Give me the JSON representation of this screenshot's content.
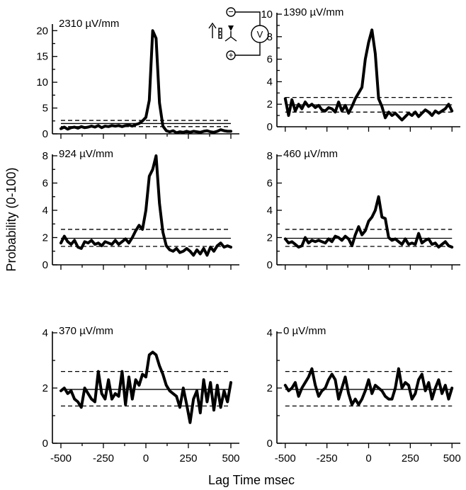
{
  "chart_data": {
    "type": "line",
    "xlabel": "Lag Time msec",
    "ylabel": "Probability (0-100)",
    "x_ticks": [
      -500,
      -250,
      0,
      250,
      500
    ],
    "x_range": [
      -550,
      550
    ],
    "inset_symbols": {
      "voltmeter": "V",
      "minus": "−",
      "plus": "+"
    },
    "panels": [
      {
        "label": "2310 µV/mm",
        "ylim": [
          0,
          21
        ],
        "yticks": [
          0,
          5,
          10,
          15,
          20
        ],
        "mean": 2.0,
        "upper": 2.6,
        "lower": 1.4,
        "x": [
          -500,
          -480,
          -460,
          -440,
          -420,
          -400,
          -380,
          -360,
          -340,
          -320,
          -300,
          -280,
          -260,
          -240,
          -220,
          -200,
          -180,
          -160,
          -140,
          -120,
          -100,
          -80,
          -60,
          -40,
          -20,
          0,
          20,
          40,
          60,
          80,
          100,
          120,
          140,
          160,
          180,
          200,
          220,
          240,
          260,
          280,
          300,
          320,
          340,
          360,
          380,
          400,
          420,
          440,
          460,
          480,
          500
        ],
        "y": [
          1.0,
          1.3,
          0.9,
          1.2,
          1.3,
          1.1,
          1.4,
          1.2,
          1.3,
          1.5,
          1.3,
          1.6,
          1.2,
          1.5,
          1.4,
          1.6,
          1.5,
          1.6,
          1.4,
          1.6,
          1.7,
          1.5,
          1.8,
          2.0,
          2.5,
          3.2,
          6.5,
          20.0,
          18.5,
          6.0,
          1.5,
          0.6,
          0.4,
          0.6,
          0.2,
          0.4,
          0.3,
          0.5,
          0.3,
          0.5,
          0.4,
          0.3,
          0.5,
          0.6,
          0.4,
          0.3,
          0.5,
          0.8,
          0.6,
          0.5,
          0.5
        ]
      },
      {
        "label": "1390 µV/mm",
        "ylim": [
          0,
          10
        ],
        "yticks": [
          0,
          2,
          4,
          6,
          8,
          10
        ],
        "mean": 1.95,
        "upper": 2.6,
        "lower": 1.3,
        "x": [
          -500,
          -480,
          -460,
          -440,
          -420,
          -400,
          -380,
          -360,
          -340,
          -320,
          -300,
          -280,
          -260,
          -240,
          -220,
          -200,
          -180,
          -160,
          -140,
          -120,
          -100,
          -80,
          -60,
          -40,
          -20,
          0,
          20,
          40,
          60,
          80,
          100,
          120,
          140,
          160,
          180,
          200,
          220,
          240,
          260,
          280,
          300,
          320,
          340,
          360,
          380,
          400,
          420,
          440,
          460,
          480,
          500
        ],
        "y": [
          2.5,
          1.0,
          2.4,
          1.4,
          2.0,
          1.6,
          2.2,
          1.8,
          2.0,
          1.7,
          1.9,
          1.5,
          1.4,
          1.7,
          1.6,
          1.3,
          2.2,
          1.4,
          1.9,
          1.2,
          1.8,
          2.5,
          3.0,
          3.5,
          6.0,
          7.5,
          8.6,
          6.5,
          2.5,
          1.8,
          0.8,
          1.3,
          1.0,
          1.2,
          0.9,
          0.6,
          0.9,
          1.2,
          1.0,
          1.3,
          0.9,
          1.2,
          1.5,
          1.3,
          1.0,
          1.4,
          1.2,
          1.4,
          1.6,
          2.0,
          1.4
        ]
      },
      {
        "label": "924 µV/mm",
        "ylim": [
          0,
          8
        ],
        "yticks": [
          0,
          2,
          4,
          6,
          8
        ],
        "mean": 1.95,
        "upper": 2.6,
        "lower": 1.35,
        "x": [
          -500,
          -480,
          -460,
          -440,
          -420,
          -400,
          -380,
          -360,
          -340,
          -320,
          -300,
          -280,
          -260,
          -240,
          -220,
          -200,
          -180,
          -160,
          -140,
          -120,
          -100,
          -80,
          -60,
          -40,
          -20,
          0,
          20,
          40,
          60,
          80,
          100,
          120,
          140,
          160,
          180,
          200,
          220,
          240,
          260,
          280,
          300,
          320,
          340,
          360,
          380,
          400,
          420,
          440,
          460,
          480,
          500
        ],
        "y": [
          1.6,
          2.1,
          1.7,
          1.5,
          1.8,
          1.3,
          1.2,
          1.7,
          1.6,
          1.8,
          1.5,
          1.6,
          1.4,
          1.7,
          1.6,
          1.5,
          1.8,
          1.5,
          1.7,
          1.9,
          1.6,
          2.0,
          2.5,
          2.9,
          2.6,
          4.0,
          6.5,
          7.0,
          8.0,
          4.5,
          2.4,
          1.4,
          1.1,
          1.0,
          1.2,
          0.9,
          1.0,
          1.2,
          1.0,
          0.7,
          1.1,
          0.8,
          1.2,
          0.7,
          1.3,
          1.0,
          1.4,
          1.6,
          1.3,
          1.4,
          1.3
        ]
      },
      {
        "label": "460 µV/mm",
        "ylim": [
          0,
          8
        ],
        "yticks": [
          0,
          2,
          4,
          6,
          8
        ],
        "mean": 1.95,
        "upper": 2.6,
        "lower": 1.35,
        "x": [
          -500,
          -480,
          -460,
          -440,
          -420,
          -400,
          -380,
          -360,
          -340,
          -320,
          -300,
          -280,
          -260,
          -240,
          -220,
          -200,
          -180,
          -160,
          -140,
          -120,
          -100,
          -80,
          -60,
          -40,
          -20,
          0,
          20,
          40,
          60,
          80,
          100,
          120,
          140,
          160,
          180,
          200,
          220,
          240,
          260,
          280,
          300,
          320,
          340,
          360,
          380,
          400,
          420,
          440,
          460,
          480,
          500
        ],
        "y": [
          1.9,
          1.6,
          1.7,
          1.5,
          1.3,
          1.4,
          2.0,
          1.6,
          1.8,
          1.7,
          1.8,
          1.7,
          1.6,
          1.9,
          1.7,
          2.1,
          2.0,
          1.8,
          2.1,
          1.9,
          1.4,
          2.2,
          2.8,
          2.2,
          2.5,
          3.2,
          3.5,
          4.0,
          5.0,
          3.5,
          3.4,
          2.0,
          1.8,
          1.9,
          1.7,
          1.5,
          1.9,
          1.5,
          1.6,
          1.5,
          2.3,
          1.6,
          1.8,
          1.9,
          1.5,
          1.6,
          1.3,
          1.5,
          1.7,
          1.4,
          1.3
        ]
      },
      {
        "label": "370 µV/mm",
        "ylim": [
          0,
          4
        ],
        "yticks": [
          0,
          2,
          4
        ],
        "mean": 1.95,
        "upper": 2.6,
        "lower": 1.35,
        "x": [
          -500,
          -480,
          -460,
          -440,
          -420,
          -400,
          -380,
          -360,
          -340,
          -320,
          -300,
          -280,
          -260,
          -240,
          -220,
          -200,
          -180,
          -160,
          -140,
          -120,
          -100,
          -80,
          -60,
          -40,
          -20,
          0,
          20,
          40,
          60,
          80,
          100,
          120,
          140,
          160,
          180,
          200,
          220,
          240,
          260,
          280,
          300,
          320,
          340,
          360,
          380,
          400,
          420,
          440,
          460,
          480,
          500
        ],
        "y": [
          1.9,
          2.0,
          1.8,
          1.9,
          1.6,
          1.5,
          1.3,
          2.0,
          1.8,
          1.6,
          1.5,
          2.6,
          1.8,
          1.6,
          2.3,
          1.6,
          1.8,
          1.7,
          2.6,
          1.4,
          2.4,
          1.6,
          2.3,
          2.1,
          2.5,
          2.4,
          3.2,
          3.3,
          3.2,
          2.8,
          2.5,
          2.1,
          1.9,
          1.8,
          1.7,
          1.3,
          2.0,
          1.4,
          0.75,
          1.6,
          1.9,
          1.1,
          2.3,
          1.5,
          2.2,
          1.2,
          2.1,
          1.3,
          1.9,
          1.5,
          2.2
        ]
      },
      {
        "label": "0 µV/mm",
        "ylim": [
          0,
          4
        ],
        "yticks": [
          0,
          2,
          4
        ],
        "mean": 1.95,
        "upper": 2.6,
        "lower": 1.35,
        "x": [
          -500,
          -480,
          -460,
          -440,
          -420,
          -400,
          -380,
          -360,
          -340,
          -320,
          -300,
          -280,
          -260,
          -240,
          -220,
          -200,
          -180,
          -160,
          -140,
          -120,
          -100,
          -80,
          -60,
          -40,
          -20,
          0,
          20,
          40,
          60,
          80,
          100,
          120,
          140,
          160,
          180,
          200,
          220,
          240,
          260,
          280,
          300,
          320,
          340,
          360,
          380,
          400,
          420,
          440,
          460,
          480,
          500
        ],
        "y": [
          2.1,
          1.9,
          2.0,
          2.2,
          1.7,
          2.0,
          2.2,
          2.4,
          2.7,
          2.1,
          1.7,
          1.9,
          2.0,
          2.3,
          2.5,
          2.3,
          1.6,
          2.0,
          2.4,
          1.8,
          1.4,
          1.6,
          1.4,
          1.6,
          1.9,
          2.3,
          1.8,
          2.1,
          2.0,
          1.9,
          1.7,
          1.6,
          1.6,
          2.0,
          2.7,
          2.0,
          2.2,
          2.1,
          1.6,
          1.8,
          2.3,
          2.5,
          1.9,
          2.2,
          1.6,
          2.0,
          2.3,
          1.8,
          2.1,
          1.6,
          2.0
        ]
      }
    ]
  }
}
